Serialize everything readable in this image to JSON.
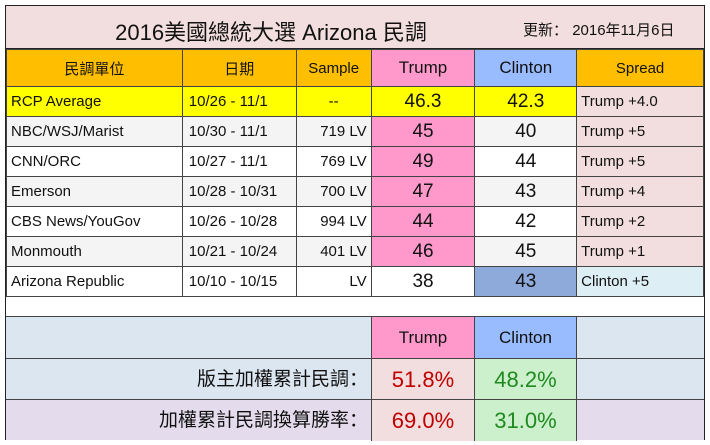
{
  "header": {
    "title": "2016美國總統大選  Arizona 民調",
    "update_label": "更新：",
    "update_date": "2016年11月6日"
  },
  "columns": [
    "民調單位",
    "日期",
    "Sample",
    "Trump",
    "Clinton",
    "Spread"
  ],
  "rows": [
    {
      "pollster": "RCP Average",
      "date": "10/26 - 11/1",
      "sample": "--",
      "trump": "46.3",
      "clinton": "42.3",
      "spread": "Trump +4.0"
    },
    {
      "pollster": "NBC/WSJ/Marist",
      "date": "10/30 - 11/1",
      "sample": "719 LV",
      "trump": "45",
      "clinton": "40",
      "spread": "Trump +5"
    },
    {
      "pollster": "CNN/ORC",
      "date": "10/27 - 11/1",
      "sample": "769 LV",
      "trump": "49",
      "clinton": "44",
      "spread": "Trump +5"
    },
    {
      "pollster": "Emerson",
      "date": "10/28 - 10/31",
      "sample": "700 LV",
      "trump": "47",
      "clinton": "43",
      "spread": "Trump +4"
    },
    {
      "pollster": "CBS News/YouGov",
      "date": "10/26 - 10/28",
      "sample": "994 LV",
      "trump": "44",
      "clinton": "42",
      "spread": "Trump +2"
    },
    {
      "pollster": "Monmouth",
      "date": "10/21 - 10/24",
      "sample": "401 LV",
      "trump": "46",
      "clinton": "45",
      "spread": "Trump +1"
    },
    {
      "pollster": "Arizona Republic",
      "date": "10/10 - 10/15",
      "sample": "LV",
      "trump": "38",
      "clinton": "43",
      "spread": "Clinton +5"
    }
  ],
  "summary": {
    "trump_label": "Trump",
    "clinton_label": "Clinton",
    "weighted_label": "版主加權累計民調：",
    "weighted_trump": "51.8%",
    "weighted_clinton": "48.2%",
    "winrate_label": "加權累計民調換算勝率：",
    "winrate_trump": "69.0%",
    "winrate_clinton": "31.0%"
  },
  "colors": {
    "header_bg": "#ffbf00",
    "trump": "#ff99cc",
    "clinton": "#99bbff",
    "rcp": "#ffff00",
    "trump_text": "#c00000",
    "clinton_text": "#1f8a1f"
  }
}
